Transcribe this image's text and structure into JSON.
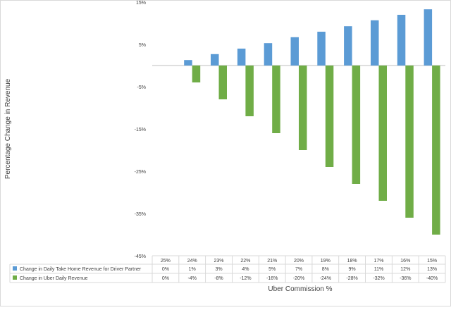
{
  "colors": {
    "series_1": "#5b9bd5",
    "series_2": "#70ad47",
    "grid": "#bfbfbf",
    "frame": "#d9d9d9",
    "text": "#404040"
  },
  "chart_data": {
    "type": "bar",
    "xlabel": "Uber Commission %",
    "ylabel": "Percentage Change in Revenue",
    "ylim": [
      -45,
      15
    ],
    "y_ticks": [
      "-45%",
      "-35%",
      "-25%",
      "-15%",
      "-5%",
      "5%",
      "15%"
    ],
    "y_tick_values": [
      -45,
      -35,
      -25,
      -15,
      -5,
      5,
      15
    ],
    "grid": false,
    "legend": "data table below plot",
    "categories": [
      "25%",
      "24%",
      "23%",
      "22%",
      "21%",
      "20%",
      "19%",
      "18%",
      "17%",
      "16%",
      "15%"
    ],
    "series": [
      {
        "name": "Change in Daily Take Home Revenue for Driver Partner",
        "values": [
          0,
          1.3,
          2.7,
          4.0,
          5.3,
          6.7,
          8.0,
          9.3,
          10.7,
          12.0,
          13.3
        ],
        "labels": [
          "0%",
          "1%",
          "3%",
          "4%",
          "5%",
          "7%",
          "8%",
          "9%",
          "11%",
          "12%",
          "13%"
        ]
      },
      {
        "name": "Change in Uber Daily  Revenue",
        "values": [
          0,
          -4,
          -8,
          -12,
          -16,
          -20,
          -24,
          -28,
          -32,
          -36,
          -40
        ],
        "labels": [
          "0%",
          "-4%",
          "-8%",
          "-12%",
          "-16%",
          "-20%",
          "-24%",
          "-28%",
          "-32%",
          "-36%",
          "-40%"
        ]
      }
    ]
  }
}
